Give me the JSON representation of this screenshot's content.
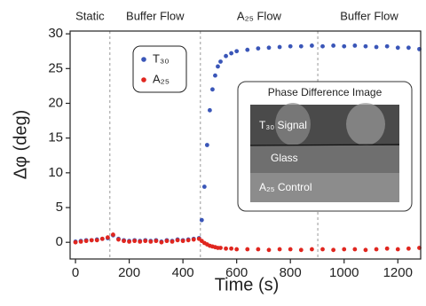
{
  "chart_data": {
    "type": "scatter",
    "xlabel": "Time (s)",
    "ylabel": "Δφ (deg)",
    "xlim": [
      -20,
      1285
    ],
    "ylim": [
      -2.4,
      30.4
    ],
    "xticks": [
      0,
      200,
      400,
      600,
      800,
      1000,
      1200
    ],
    "yticks": [
      0,
      5,
      10,
      15,
      20,
      25,
      30
    ],
    "phase_boundaries": [
      128,
      465,
      902
    ],
    "phases": [
      "Static",
      "Buffer Flow",
      "A₂₅ Flow",
      "Buffer Flow"
    ],
    "legend": "upper left",
    "inset": {
      "title": "Phase Difference Image",
      "labels": [
        "T₃₀ Signal",
        "Glass",
        "A₂₅ Control"
      ]
    },
    "x": [
      0,
      20,
      40,
      60,
      80,
      100,
      120,
      140,
      160,
      180,
      200,
      220,
      240,
      260,
      280,
      300,
      320,
      340,
      360,
      380,
      400,
      420,
      440,
      460,
      470,
      480,
      490,
      500,
      510,
      520,
      530,
      540,
      560,
      580,
      600,
      640,
      680,
      720,
      760,
      800,
      840,
      880,
      920,
      960,
      1000,
      1040,
      1080,
      1120,
      1160,
      1200,
      1240,
      1280
    ],
    "series": [
      {
        "name": "T₃₀",
        "color": "#3a56b8",
        "values": [
          0.1,
          0.2,
          0.3,
          0.3,
          0.4,
          0.5,
          0.6,
          1.0,
          0.5,
          0.3,
          0.2,
          0.3,
          0.2,
          0.3,
          0.2,
          0.3,
          0.1,
          0.3,
          0.2,
          0.4,
          0.3,
          0.4,
          0.5,
          0.6,
          3.2,
          8.0,
          14.0,
          19.0,
          22.0,
          24.0,
          25.3,
          26.0,
          26.8,
          27.2,
          27.5,
          27.7,
          27.9,
          28.0,
          28.1,
          28.2,
          28.2,
          28.3,
          28.2,
          28.3,
          28.2,
          28.3,
          28.2,
          28.1,
          28.2,
          28.0,
          28.0,
          27.8
        ]
      },
      {
        "name": "A₂₅",
        "color": "#e0261f",
        "values": [
          0.0,
          0.1,
          0.2,
          0.3,
          0.3,
          0.5,
          0.7,
          1.1,
          0.4,
          0.2,
          0.1,
          0.2,
          0.1,
          0.2,
          0.1,
          0.2,
          0.0,
          0.2,
          0.1,
          0.3,
          0.2,
          0.3,
          0.4,
          0.5,
          0.2,
          -0.1,
          -0.3,
          -0.5,
          -0.6,
          -0.7,
          -0.8,
          -0.8,
          -0.9,
          -0.9,
          -1.0,
          -1.0,
          -1.0,
          -1.1,
          -1.0,
          -1.0,
          -1.1,
          -1.0,
          -1.0,
          -1.1,
          -1.0,
          -1.0,
          -1.1,
          -1.0,
          -0.9,
          -1.0,
          -0.9,
          -0.8
        ]
      }
    ]
  }
}
